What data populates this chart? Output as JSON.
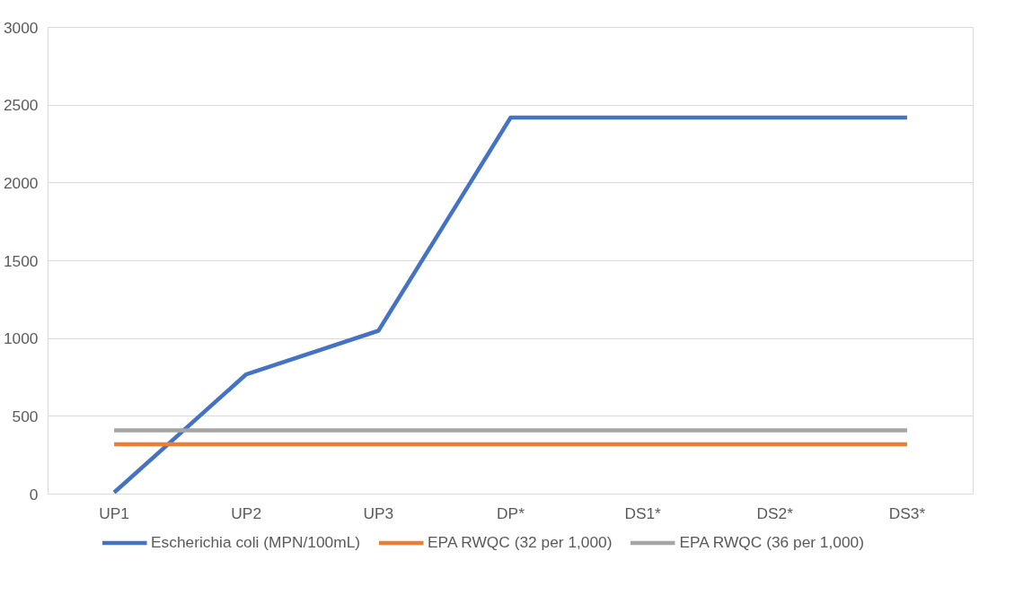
{
  "chart_data": {
    "type": "line",
    "categories": [
      "UP1",
      "UP2",
      "UP3",
      "DP*",
      "DS1*",
      "DS2*",
      "DS3*"
    ],
    "series": [
      {
        "name": "Escherichia coli (MPN/100mL)",
        "color": "#4472c4",
        "values": [
          10,
          770,
          1050,
          2420,
          2420,
          2420,
          2420
        ]
      },
      {
        "name": "EPA RWQC (32 per 1,000)",
        "color": "#ed7d31",
        "values": [
          320,
          320,
          320,
          320,
          320,
          320,
          320
        ]
      },
      {
        "name": "EPA RWQC (36 per 1,000)",
        "color": "#a5a5a5",
        "values": [
          410,
          410,
          410,
          410,
          410,
          410,
          410
        ]
      }
    ],
    "ylim": [
      0,
      3000
    ],
    "yticks": [
      0,
      500,
      1000,
      1500,
      2000,
      2500,
      3000
    ],
    "grid": "y",
    "legend": "bottom",
    "marker": "none",
    "line_style": "solid"
  }
}
